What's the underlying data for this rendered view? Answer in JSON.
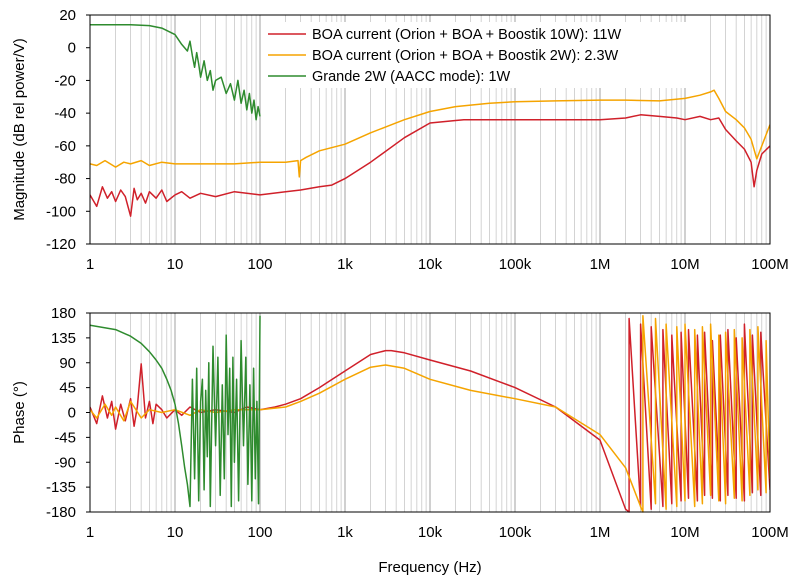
{
  "colors": {
    "red": "#d0202a",
    "orange": "#f5a400",
    "green": "#2e8b2e",
    "grid": "#c8c8c8",
    "axis": "#000000"
  },
  "chart_data": [
    {
      "type": "line",
      "xscale": "log",
      "xlim": [
        1,
        100000000
      ],
      "ylim": [
        -120,
        20
      ],
      "ylabel": "Magnitude (dB rel power/V)",
      "xlabel": "",
      "yticks": [
        "20",
        "0",
        "-20",
        "-40",
        "-60",
        "-80",
        "-100",
        "-120"
      ],
      "ytick_values": [
        20,
        0,
        -20,
        -40,
        -60,
        -80,
        -100,
        -120
      ],
      "xticks": [
        "1",
        "10",
        "100",
        "1k",
        "10k",
        "100k",
        "1M",
        "10M",
        "100M"
      ],
      "legend_position": "top-right",
      "grid": true,
      "series": [
        {
          "name": "BOA current (Orion + BOA + Boostik 10W): 11W",
          "color": "red",
          "x": [
            1,
            1.2,
            1.4,
            1.6,
            1.8,
            2,
            2.3,
            2.6,
            3,
            3.3,
            3.6,
            4,
            4.5,
            5,
            6,
            7,
            8,
            10,
            12,
            15,
            20,
            30,
            50,
            100,
            200,
            300,
            500,
            700,
            1000,
            2000,
            5000,
            10000,
            20000,
            25000,
            50000,
            100000,
            300000,
            1000000,
            2000000,
            3000000,
            5000000,
            8000000,
            10000000,
            15000000,
            20000000,
            25000000,
            30000000,
            40000000,
            50000000,
            60000000,
            65000000,
            70000000,
            80000000,
            100000000
          ],
          "y": [
            -90,
            -97,
            -85,
            -92,
            -88,
            -94,
            -87,
            -91,
            -103,
            -86,
            -93,
            -89,
            -95,
            -88,
            -92,
            -87,
            -94,
            -90,
            -88,
            -92,
            -89,
            -91,
            -88,
            -90,
            -88,
            -87,
            -85,
            -84,
            -80,
            -70,
            -55,
            -46,
            -44.5,
            -44,
            -44,
            -44,
            -44,
            -44,
            -43,
            -41,
            -42,
            -43,
            -44,
            -42,
            -44,
            -43,
            -50,
            -57,
            -62,
            -70,
            -85,
            -75,
            -65,
            -60
          ]
        },
        {
          "name": "BOA current (Orion + BOA + Boostik 2W): 2.3W",
          "color": "orange",
          "x": [
            1,
            1.2,
            1.5,
            2,
            2.5,
            3,
            4,
            5,
            7,
            10,
            20,
            50,
            100,
            200,
            280,
            290,
            300,
            350,
            500,
            1000,
            2000,
            5000,
            10000,
            20000,
            50000,
            100000,
            300000,
            1000000,
            2000000,
            5000000,
            10000000,
            15000000,
            20000000,
            22000000,
            25000000,
            30000000,
            40000000,
            50000000,
            60000000,
            70000000,
            80000000,
            100000000
          ],
          "y": [
            -71,
            -72,
            -69,
            -73,
            -70,
            -71,
            -69,
            -72,
            -70,
            -71,
            -71,
            -71,
            -70,
            -70,
            -69,
            -79,
            -69,
            -67,
            -63,
            -59,
            -52,
            -44,
            -39,
            -36,
            -34,
            -33,
            -32.5,
            -32,
            -32,
            -32.5,
            -31,
            -29,
            -27,
            -26,
            -31,
            -39,
            -44,
            -49,
            -56,
            -68,
            -60,
            -47
          ]
        },
        {
          "name": "Grande 2W (AACC mode): 1W",
          "color": "green",
          "x": [
            1,
            2,
            3,
            5,
            7,
            10,
            12,
            14,
            15,
            16,
            17,
            18,
            19,
            20,
            22,
            24,
            26,
            28,
            30,
            35,
            40,
            45,
            50,
            55,
            60,
            65,
            70,
            75,
            80,
            85,
            90,
            95,
            100
          ],
          "y": [
            14,
            14,
            14,
            13.5,
            12,
            8,
            2,
            -2,
            4,
            -5,
            -12,
            -3,
            -10,
            -18,
            -8,
            -20,
            -14,
            -26,
            -20,
            -18,
            -28,
            -22,
            -32,
            -20,
            -34,
            -26,
            -38,
            -28,
            -40,
            -32,
            -44,
            -36,
            -42
          ]
        }
      ]
    },
    {
      "type": "line",
      "xscale": "log",
      "xlim": [
        1,
        100000000
      ],
      "ylim": [
        -180,
        180
      ],
      "ylabel": "Phase (°)",
      "xlabel": "Frequency (Hz)",
      "yticks": [
        "180",
        "135",
        "90",
        "45",
        "0",
        "-45",
        "-90",
        "-135",
        "-180"
      ],
      "ytick_values": [
        180,
        135,
        90,
        45,
        0,
        -45,
        -90,
        -135,
        -180
      ],
      "xticks": [
        "1",
        "10",
        "100",
        "1k",
        "10k",
        "100k",
        "1M",
        "10M",
        "100M"
      ],
      "grid": true,
      "series": [
        {
          "color": "red",
          "x": [
            1,
            1.2,
            1.4,
            1.6,
            1.8,
            2,
            2.3,
            2.6,
            3,
            3.3,
            3.6,
            4,
            4.5,
            5,
            5.5,
            6,
            7,
            8,
            10,
            12,
            15,
            20,
            30,
            50,
            70,
            100,
            150,
            200,
            300,
            500,
            1000,
            2000,
            3000,
            3500,
            5000,
            10000,
            30000,
            100000,
            300000,
            1000000,
            2000000,
            2200000,
            2200001,
            3000000,
            3000001,
            4000000,
            4000001,
            5500000,
            5500001,
            7000000,
            7000001,
            9000000,
            9000001,
            11000000,
            11000001,
            14000000,
            14000001,
            17000000,
            17000001,
            21000000,
            21000001,
            26000000,
            26000001,
            32000000,
            32000001,
            40000000,
            40000001,
            50000000,
            50000001,
            62000000,
            62000001,
            78000000,
            78000001,
            100000000
          ],
          "y": [
            10,
            -20,
            30,
            -10,
            20,
            -30,
            15,
            -15,
            25,
            -25,
            10,
            88,
            -10,
            20,
            -20,
            15,
            5,
            -10,
            5,
            -5,
            10,
            0,
            5,
            0,
            10,
            5,
            10,
            15,
            25,
            45,
            75,
            105,
            112,
            112,
            108,
            95,
            75,
            45,
            10,
            -50,
            -175,
            -180,
            170,
            -170,
            160,
            -175,
            155,
            -170,
            150,
            -165,
            140,
            -160,
            145,
            -155,
            150,
            -160,
            140,
            -150,
            145,
            -155,
            130,
            -160,
            140,
            -150,
            150,
            -155,
            135,
            -160,
            160,
            -145,
            140,
            -150,
            145,
            -140
          ]
        },
        {
          "color": "orange",
          "x": [
            1,
            1.2,
            1.5,
            1.8,
            2,
            2.5,
            3,
            4,
            5,
            7,
            10,
            15,
            20,
            30,
            50,
            100,
            200,
            300,
            500,
            1000,
            2000,
            3000,
            5000,
            10000,
            30000,
            100000,
            300000,
            1000000,
            2000000,
            3000000,
            3200000,
            3200001,
            4500000,
            4500001,
            6000000,
            6000001,
            8000000,
            8000001,
            10000000,
            10000001,
            13000000,
            13000001,
            16000000,
            16000001,
            20000000,
            20000001,
            25000000,
            25000001,
            30000000,
            30000001,
            38000000,
            38000001,
            47000000,
            47000001,
            58000000,
            58000001,
            72000000,
            72000001,
            90000000,
            90000001,
            100000000
          ],
          "y": [
            5,
            -10,
            15,
            -5,
            10,
            -15,
            20,
            -10,
            5,
            0,
            5,
            -5,
            5,
            0,
            5,
            5,
            10,
            20,
            35,
            60,
            82,
            86,
            80,
            60,
            40,
            25,
            10,
            -40,
            -100,
            -170,
            -180,
            175,
            -165,
            170,
            -175,
            160,
            -170,
            155,
            -160,
            160,
            -170,
            150,
            -165,
            155,
            -150,
            160,
            -160,
            140,
            -165,
            145,
            -155,
            150,
            -160,
            135,
            -150,
            150,
            -140,
            155,
            -145,
            130,
            -120
          ]
        },
        {
          "color": "green",
          "x": [
            1,
            2,
            3,
            4,
            5,
            6,
            7,
            8,
            9,
            10,
            11,
            12,
            13,
            14,
            15,
            16,
            17,
            18,
            19,
            20,
            21,
            22,
            23,
            24,
            25,
            26,
            28,
            30,
            32,
            34,
            36,
            38,
            40,
            42,
            44,
            46,
            48,
            50,
            53,
            56,
            60,
            64,
            68,
            72,
            76,
            80,
            84,
            88,
            92,
            96,
            100
          ],
          "y": [
            158,
            150,
            138,
            125,
            110,
            95,
            80,
            60,
            40,
            15,
            -20,
            -60,
            -100,
            -130,
            -170,
            60,
            -120,
            80,
            -160,
            20,
            60,
            -140,
            40,
            -80,
            90,
            -170,
            120,
            -60,
            100,
            -150,
            50,
            -120,
            140,
            -40,
            80,
            -170,
            100,
            -90,
            60,
            -160,
            130,
            -60,
            100,
            -130,
            50,
            -160,
            80,
            -120,
            20,
            -165,
            175
          ]
        }
      ]
    }
  ]
}
